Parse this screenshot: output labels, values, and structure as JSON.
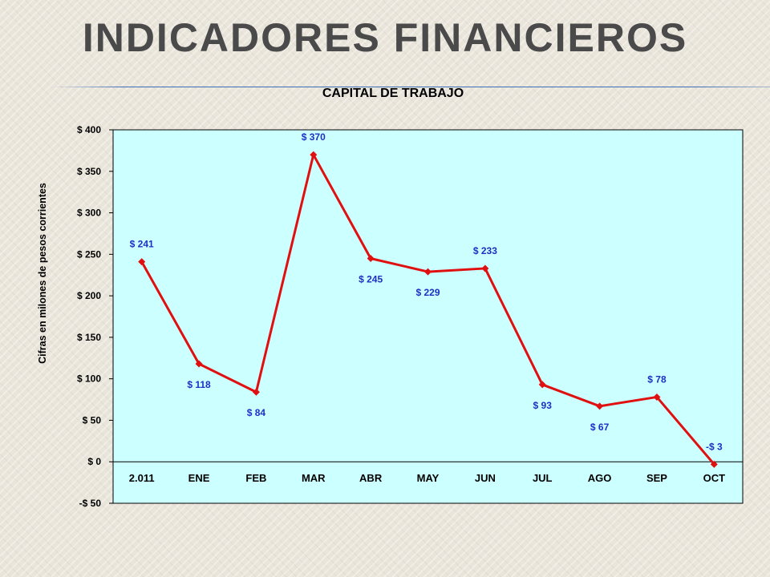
{
  "slide": {
    "title": "INDICADORES FINANCIEROS",
    "title_color": "#4a4a4a",
    "rule_color": "#3c6eb4"
  },
  "chart_data": {
    "type": "line",
    "title": "CAPITAL DE TRABAJO",
    "xlabel": "",
    "ylabel": "Cifras en milones de pesos corrientes",
    "categories": [
      "2.011",
      "ENE",
      "FEB",
      "MAR",
      "ABR",
      "MAY",
      "JUN",
      "JUL",
      "AGO",
      "SEP",
      "OCT"
    ],
    "series": [
      {
        "values": [
          241,
          118,
          84,
          370,
          245,
          229,
          233,
          93,
          67,
          78,
          -3
        ],
        "labels": [
          "$ 241",
          "$ 118",
          "$ 84",
          "$ 370",
          "$ 245",
          "$ 229",
          "$ 233",
          "$ 93",
          "$ 67",
          "$ 78",
          "-$ 3"
        ],
        "color": "#e01010"
      }
    ],
    "ylim": [
      -50,
      400
    ],
    "yticks": [
      -50,
      0,
      50,
      100,
      150,
      200,
      250,
      300,
      350,
      400
    ],
    "ytick_labels": [
      "-$ 50",
      "$ 0",
      "$ 50",
      "$ 100",
      "$ 150",
      "$ 200",
      "$ 250",
      "$ 300",
      "$ 350",
      "$ 400"
    ],
    "grid": false,
    "legend": "none",
    "plot_background": "#ccffff",
    "label_color": "#1f2fc4"
  }
}
